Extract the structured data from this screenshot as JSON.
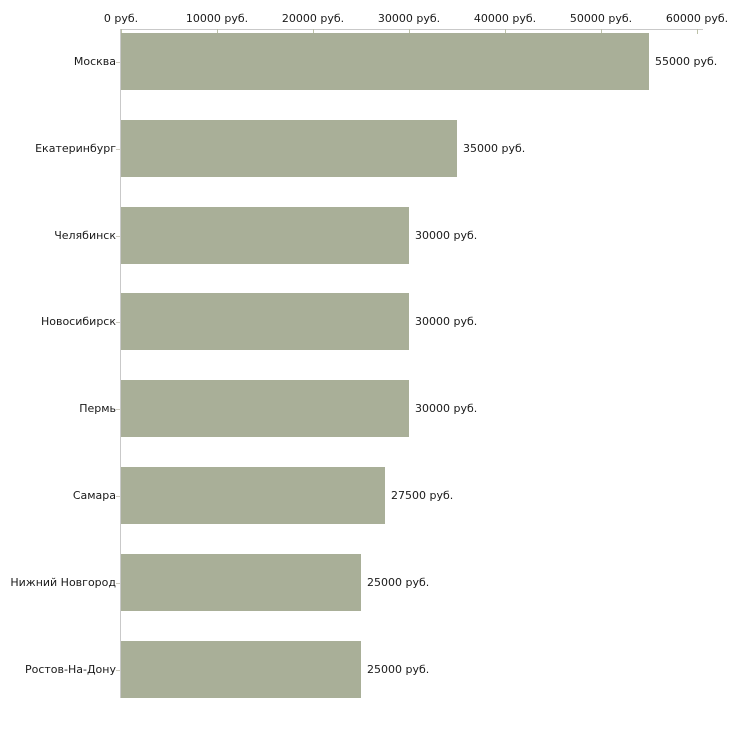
{
  "chart_data": {
    "type": "bar",
    "orientation": "horizontal",
    "title": "",
    "xlabel": "",
    "ylabel": "",
    "grid": false,
    "legend": false,
    "axis_position": "top",
    "categories": [
      "Москва",
      "Екатеринбург",
      "Челябинск",
      "Новосибирск",
      "Пермь",
      "Самара",
      "Нижний Новгород",
      "Ростов-На-Дону"
    ],
    "values": [
      55000,
      35000,
      30000,
      30000,
      30000,
      27500,
      25000,
      25000
    ],
    "value_labels": [
      "55000 руб.",
      "35000 руб.",
      "30000 руб.",
      "30000 руб.",
      "30000 руб.",
      "27500 руб.",
      "25000 руб.",
      "25000 руб."
    ],
    "x_tick_values": [
      0,
      10000,
      20000,
      30000,
      40000,
      50000,
      60000
    ],
    "x_tick_labels": [
      "0 руб.",
      "10000 руб.",
      "20000 руб.",
      "30000 руб.",
      "40000 руб.",
      "50000 руб.",
      "60000 руб."
    ],
    "xlim": [
      0,
      60000
    ],
    "colors": {
      "bar": "#a9af98",
      "axis_line": "#c9c9c9",
      "axis_tick": "#bcc1a8",
      "category_tick": "#cfccc0",
      "text": "#1a1a1a",
      "background": "#ffffff"
    }
  }
}
